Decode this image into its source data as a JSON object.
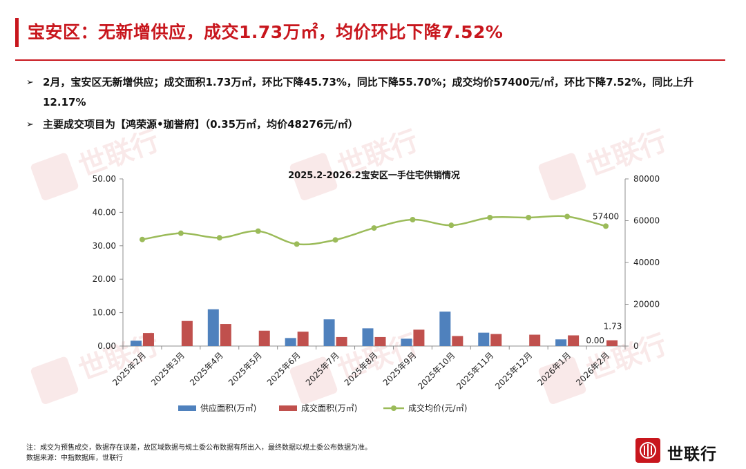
{
  "header": {
    "title": "宝安区：无新增供应，成交1.73万㎡，均价环比下降7.52%"
  },
  "bullets": [
    "2月，宝安区无新增供应；成交面积1.73万㎡，环比下降45.73%，同比下降55.70%；成交均价57400元/㎡，环比下降7.52%，同比上升12.17%",
    "主要成交项目为【鸿荣源•珈誉府】（0.35万㎡，均价48276元/㎡）"
  ],
  "bullet_icon": "triangle-arrow-icon",
  "watermark_text": "世联行",
  "chart_data": {
    "type": "bar",
    "title": "2025.2-2026.2宝安区一手住宅供销情况",
    "categories": [
      "2025年2月",
      "2025年3月",
      "2025年4月",
      "2025年5月",
      "2025年6月",
      "2025年7月",
      "2025年8月",
      "2025年9月",
      "2025年10月",
      "2025年11月",
      "2025年12月",
      "2026年1月",
      "2026年2月"
    ],
    "series": [
      {
        "name": "供应面积(万㎡)",
        "type": "bar",
        "axis": "left",
        "color": "#4f81bd",
        "values": [
          1.6,
          null,
          11.0,
          null,
          2.4,
          8.0,
          5.3,
          2.2,
          10.3,
          4.0,
          null,
          2.0,
          0.0
        ]
      },
      {
        "name": "成交面积(万㎡)",
        "type": "bar",
        "axis": "left",
        "color": "#c0504d",
        "values": [
          3.9,
          7.5,
          6.6,
          4.6,
          4.3,
          2.7,
          2.7,
          4.9,
          3.0,
          3.6,
          3.4,
          3.2,
          1.73
        ]
      },
      {
        "name": "成交均价(元/㎡)",
        "type": "line",
        "axis": "right",
        "color": "#9bbb59",
        "values": [
          51000,
          54000,
          51800,
          55000,
          48800,
          50800,
          56500,
          60500,
          57800,
          61500,
          61500,
          62000,
          57400
        ]
      }
    ],
    "ylim_left": [
      0,
      50
    ],
    "ylim_right": [
      0,
      80000
    ],
    "yticks_left": [
      "0.00",
      "10.00",
      "20.00",
      "30.00",
      "40.00",
      "50.00"
    ],
    "yticks_right": [
      "0",
      "20000",
      "40000",
      "60000",
      "80000"
    ],
    "data_labels": [
      {
        "series": 0,
        "index": 12,
        "text": "0.00"
      },
      {
        "series": 1,
        "index": 12,
        "text": "1.73"
      },
      {
        "series": 2,
        "index": 12,
        "text": "57400"
      }
    ],
    "legend_position": "bottom",
    "grid": false
  },
  "footnotes": [
    "注：成交为预售成交，数据存在误差，故区域数据与规土委公布数据有所出入，最终数据以规土委公布数据为准。",
    "数据来源：中指数据库，世联行"
  ],
  "logo": {
    "text": "世联行",
    "color": "#c8161d"
  }
}
